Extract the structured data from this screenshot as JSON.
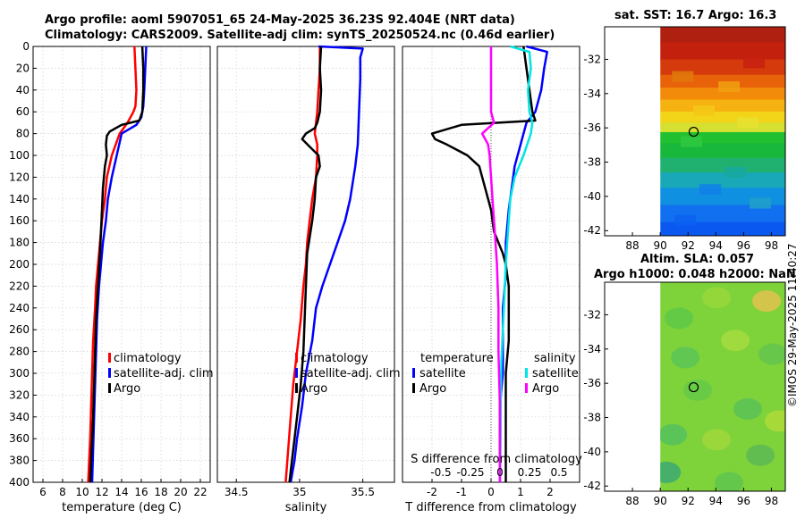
{
  "header": {
    "line1": "Argo profile: aoml 5907051_65 24-May-2025 36.23S 92.404E (NRT data)",
    "line2": "Climatology: CARS2009. Satellite-adj clim: synTS_20250524.nc (0.46d earlier)"
  },
  "sst_title": "sat. SST: 16.7 Argo: 16.3",
  "sla_title_line1": "Altim. SLA: 0.057",
  "sla_title_line2": "Argo h1000: 0.048 h2000: NaN",
  "timestamp": "©IMOS 29-May-2025 11:40:27",
  "colors": {
    "climatology": "#ff0000",
    "satellite": "#0000ff",
    "argo": "#000000",
    "sat_salinity": "#00e5e5",
    "argo_salinity": "#ff00ff"
  },
  "chart_data": [
    {
      "type": "line",
      "name": "temperature-profile",
      "xlabel": "temperature (deg C)",
      "ylabel": "",
      "xlim": [
        5,
        23
      ],
      "ylim": [
        400,
        0
      ],
      "xticks": [
        6,
        8,
        10,
        12,
        14,
        16,
        18,
        20,
        22
      ],
      "yticks": [
        0,
        20,
        40,
        60,
        80,
        100,
        120,
        140,
        160,
        180,
        200,
        220,
        240,
        260,
        280,
        300,
        320,
        340,
        360,
        380,
        400
      ],
      "legend": [
        "climatology",
        "satellite-adj. clim",
        "Argo"
      ],
      "series": [
        {
          "name": "climatology",
          "color": "#ff0000",
          "x": [
            15.3,
            15.4,
            15.5,
            15.4,
            15.2,
            14.6,
            13.8,
            13.0,
            12.5,
            12.3,
            12.0,
            11.8,
            11.6,
            11.4,
            11.3,
            11.1,
            11.0,
            10.9,
            10.8,
            10.7,
            10.6
          ],
          "depth": [
            0,
            20,
            40,
            55,
            60,
            70,
            80,
            100,
            120,
            140,
            160,
            180,
            200,
            220,
            240,
            270,
            300,
            330,
            360,
            380,
            400
          ]
        },
        {
          "name": "satellite-adj. clim",
          "color": "#0000ff",
          "x": [
            16.5,
            16.4,
            16.3,
            16.2,
            16.0,
            15.5,
            14.0,
            13.5,
            13.0,
            12.6,
            12.4,
            12.1,
            11.9,
            11.7,
            11.5,
            11.4,
            11.3,
            11.2,
            11.1,
            11.0
          ],
          "depth": [
            0,
            20,
            40,
            55,
            65,
            72,
            80,
            100,
            120,
            140,
            160,
            180,
            200,
            220,
            250,
            280,
            310,
            340,
            370,
            400
          ]
        },
        {
          "name": "Argo",
          "color": "#000000",
          "x": [
            16.1,
            16.2,
            16.2,
            16.1,
            15.8,
            14.0,
            12.8,
            12.5,
            12.4,
            12.5,
            12.3,
            12.1,
            12.0,
            11.9,
            11.8,
            11.6,
            11.4,
            11.3,
            11.2,
            11.1,
            11.0,
            10.9,
            10.8
          ],
          "depth": [
            0,
            20,
            40,
            60,
            68,
            72,
            78,
            82,
            90,
            100,
            110,
            130,
            150,
            170,
            190,
            220,
            250,
            280,
            310,
            340,
            360,
            380,
            400
          ]
        }
      ]
    },
    {
      "type": "line",
      "name": "salinity-profile",
      "xlabel": "salinity",
      "ylabel": "",
      "xlim": [
        34.35,
        35.75
      ],
      "ylim": [
        400,
        0
      ],
      "xticks": [
        34.5,
        35,
        35.5
      ],
      "legend": [
        "climatology",
        "satellite-adj. clim",
        "Argo"
      ],
      "series": [
        {
          "name": "climatology",
          "color": "#ff0000",
          "x": [
            35.16,
            35.16,
            35.15,
            35.14,
            35.12,
            35.14,
            35.14,
            35.13,
            35.1,
            35.08,
            35.06,
            35.05,
            35.03,
            35.01,
            34.98,
            34.95,
            34.93,
            34.91,
            34.89
          ],
          "depth": [
            0,
            20,
            40,
            60,
            80,
            90,
            100,
            120,
            140,
            160,
            180,
            200,
            220,
            250,
            280,
            310,
            340,
            370,
            400
          ]
        },
        {
          "name": "satellite-adj. clim",
          "color": "#0000ff",
          "x": [
            35.15,
            35.5,
            35.48,
            35.48,
            35.47,
            35.46,
            35.44,
            35.4,
            35.36,
            35.3,
            35.24,
            35.18,
            35.13,
            35.1,
            35.05,
            35.02,
            34.98,
            34.96,
            34.93
          ],
          "depth": [
            0,
            2,
            10,
            30,
            60,
            90,
            110,
            140,
            160,
            180,
            200,
            220,
            240,
            270,
            300,
            330,
            360,
            380,
            400
          ]
        },
        {
          "name": "Argo",
          "color": "#000000",
          "x": [
            35.17,
            35.16,
            35.17,
            35.16,
            35.14,
            35.12,
            35.05,
            35.02,
            35.08,
            35.15,
            35.16,
            35.13,
            35.12,
            35.1,
            35.06,
            35.05,
            35.04,
            35.03,
            35.01,
            34.98,
            34.96,
            34.94,
            34.92
          ],
          "depth": [
            0,
            20,
            40,
            60,
            70,
            75,
            80,
            85,
            92,
            100,
            110,
            120,
            140,
            160,
            190,
            220,
            250,
            280,
            310,
            340,
            360,
            380,
            400
          ]
        }
      ]
    },
    {
      "type": "line",
      "name": "difference-profile",
      "xlabel": "T difference from climatology",
      "xlabel_top": "S difference from climatology",
      "xlim": [
        -3,
        3
      ],
      "ylim": [
        400,
        0
      ],
      "xticks": [
        -2,
        -1,
        0,
        1,
        2
      ],
      "xtick_labels": [
        "-2",
        "-1",
        "0",
        "1",
        "2"
      ],
      "sticks_labels": [
        "-0.5",
        "-0.25",
        "0",
        "0.25",
        "0.5"
      ],
      "legend_left": {
        "title": "temperature",
        "items": [
          "satellite",
          "Argo"
        ]
      },
      "legend_right": {
        "title": "salinity",
        "items": [
          "satellite",
          "Argo"
        ]
      },
      "series": [
        {
          "name": "temperature satellite",
          "color": "#0000ff",
          "x": [
            1.2,
            1.9,
            1.8,
            1.7,
            1.5,
            1.2,
            1.0,
            0.8,
            0.7,
            0.6,
            0.5,
            0.5,
            0.4,
            0.4,
            0.4,
            0.3,
            0.3,
            0.3
          ],
          "depth": [
            0,
            5,
            20,
            40,
            60,
            70,
            90,
            110,
            130,
            150,
            180,
            210,
            240,
            270,
            300,
            330,
            360,
            400
          ]
        },
        {
          "name": "temperature Argo",
          "color": "#000000",
          "x": [
            1.1,
            1.2,
            1.3,
            1.4,
            1.5,
            -1.0,
            -2.0,
            -1.9,
            -1.5,
            -0.8,
            -0.4,
            -0.2,
            0.0,
            0.1,
            0.4,
            0.5,
            0.6,
            0.6,
            0.6,
            0.5,
            0.5,
            0.5,
            0.5
          ],
          "depth": [
            0,
            20,
            40,
            60,
            68,
            72,
            80,
            85,
            90,
            100,
            110,
            130,
            150,
            170,
            190,
            200,
            220,
            240,
            270,
            300,
            330,
            360,
            400
          ]
        },
        {
          "name": "salinity satellite",
          "color": "#00e5e5",
          "x": [
            0.65,
            1.3,
            1.35,
            1.25,
            1.3,
            1.4,
            1.35,
            1.1,
            0.8,
            0.65,
            0.6,
            0.55,
            0.5,
            0.45,
            0.4,
            0.35,
            0.33,
            0.32,
            0.3
          ],
          "depth": [
            0,
            5,
            20,
            40,
            60,
            70,
            80,
            100,
            120,
            140,
            160,
            180,
            200,
            230,
            260,
            290,
            320,
            360,
            400
          ]
        },
        {
          "name": "salinity Argo",
          "color": "#ff00ff",
          "x": [
            0.0,
            0.0,
            0.0,
            0.0,
            0.1,
            -0.3,
            -0.1,
            -0.05,
            0.0,
            0.05,
            0.1,
            0.15,
            0.2,
            0.25,
            0.25,
            0.3,
            0.3
          ],
          "depth": [
            0,
            20,
            40,
            60,
            70,
            80,
            90,
            100,
            120,
            140,
            160,
            180,
            200,
            240,
            280,
            330,
            400
          ]
        }
      ]
    },
    {
      "type": "heatmap",
      "name": "sst-map",
      "title": "sat. SST: 16.7 Argo: 16.3",
      "xlim": [
        86,
        99
      ],
      "ylim": [
        -42.3,
        -30.1
      ],
      "xticks": [
        88,
        90,
        92,
        94,
        96,
        98
      ],
      "yticks": [
        -32,
        -34,
        -36,
        -38,
        -40,
        -42
      ],
      "data_x_range": [
        90,
        99
      ],
      "bands": [
        {
          "lat": -30.5,
          "color": "#b02010"
        },
        {
          "lat": -31.5,
          "color": "#c4200e"
        },
        {
          "lat": -32.5,
          "color": "#d43a0c"
        },
        {
          "lat": -33.3,
          "color": "#e8620a"
        },
        {
          "lat": -34.0,
          "color": "#f28a0a"
        },
        {
          "lat": -34.7,
          "color": "#f5b210"
        },
        {
          "lat": -35.4,
          "color": "#f2d418"
        },
        {
          "lat": -36.0,
          "color": "#d6e030"
        },
        {
          "lat": -36.5,
          "color": "#20c030"
        },
        {
          "lat": -37.3,
          "color": "#18b83c"
        },
        {
          "lat": -38.2,
          "color": "#20b070"
        },
        {
          "lat": -39.0,
          "color": "#18a8b8"
        },
        {
          "lat": -40.0,
          "color": "#1090e0"
        },
        {
          "lat": -41.0,
          "color": "#1070f0"
        },
        {
          "lat": -42.0,
          "color": "#0a58f0"
        }
      ],
      "marker": {
        "lon": 92.404,
        "lat": -36.23
      }
    },
    {
      "type": "heatmap",
      "name": "sla-map",
      "title": "Altim. SLA: 0.057 / Argo h1000: 0.048 h2000: NaN",
      "xlim": [
        86,
        99
      ],
      "ylim": [
        -42.3,
        -30.1
      ],
      "xticks": [
        88,
        90,
        92,
        94,
        96,
        98
      ],
      "yticks": [
        -32,
        -34,
        -36,
        -38,
        -40,
        -42
      ],
      "data_x_range": [
        90,
        99
      ],
      "base_color": "#7ed23a",
      "marker": {
        "lon": 92.404,
        "lat": -36.23
      }
    }
  ]
}
